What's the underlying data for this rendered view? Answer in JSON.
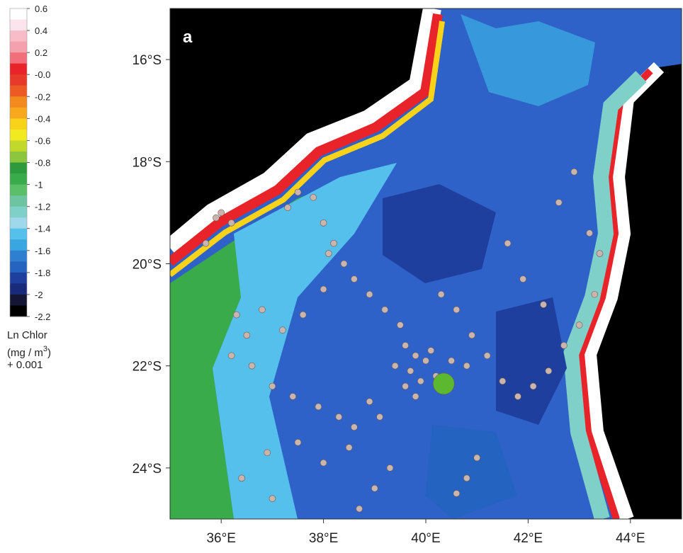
{
  "chart_data": {
    "type": "scatter",
    "panel_label": "a",
    "xlim": [
      35,
      45
    ],
    "ylim": [
      -25,
      -15
    ],
    "xticks": [
      {
        "value": 36,
        "label": "36°E"
      },
      {
        "value": 38,
        "label": "38°E"
      },
      {
        "value": 40,
        "label": "40°E"
      },
      {
        "value": 42,
        "label": "42°E"
      },
      {
        "value": 44,
        "label": "44°E"
      }
    ],
    "yticks": [
      {
        "value": -16,
        "label": "16°S"
      },
      {
        "value": -18,
        "label": "18°S"
      },
      {
        "value": -20,
        "label": "20°S"
      },
      {
        "value": -22,
        "label": "22°S"
      },
      {
        "value": -24,
        "label": "24°S"
      }
    ],
    "series": [
      {
        "color": "#c9b5ad",
        "size": 4.5,
        "x": [
          35.9,
          36.0,
          36.2,
          35.7,
          37.3,
          37.5,
          37.8,
          38.0,
          38.2,
          38.4,
          38.1,
          38.6,
          38.9,
          39.2,
          39.5,
          39.6,
          39.8,
          40.0,
          39.7,
          39.9,
          40.1,
          39.4,
          39.6,
          39.8,
          40.2,
          40.5,
          40.8,
          38.0,
          37.6,
          37.2,
          36.8,
          36.5,
          36.3,
          36.2,
          36.6,
          37.0,
          37.4,
          37.9,
          38.3,
          38.6,
          38.9,
          39.1,
          38.5,
          38.0,
          37.5,
          36.9,
          36.4,
          40.3,
          40.6,
          40.9,
          41.2,
          41.5,
          41.8,
          42.1,
          42.4,
          42.7,
          43.0,
          43.3,
          43.4,
          43.2,
          42.6,
          42.9,
          41.6,
          41.9,
          42.3,
          41.0,
          40.8,
          40.6,
          39.3,
          39.0,
          38.7,
          37.0
        ],
        "values": [
          -19.1,
          -19.0,
          -19.2,
          -19.6,
          -18.9,
          -18.6,
          -18.7,
          -19.2,
          -19.6,
          -20.0,
          -19.8,
          -20.3,
          -20.6,
          -20.9,
          -21.2,
          -21.6,
          -21.8,
          -21.9,
          -22.1,
          -22.3,
          -21.7,
          -22.0,
          -22.4,
          -22.6,
          -22.2,
          -21.9,
          -22.0,
          -20.5,
          -21.0,
          -21.3,
          -20.9,
          -21.4,
          -21.0,
          -21.8,
          -22.0,
          -22.4,
          -22.6,
          -22.8,
          -23.0,
          -23.2,
          -22.7,
          -23.0,
          -23.6,
          -23.9,
          -23.5,
          -23.7,
          -24.2,
          -20.6,
          -20.9,
          -21.4,
          -21.8,
          -22.3,
          -22.6,
          -22.4,
          -22.1,
          -21.6,
          -21.2,
          -20.6,
          -19.8,
          -19.4,
          -18.8,
          -18.2,
          -19.6,
          -20.3,
          -20.8,
          -23.8,
          -24.2,
          -24.5,
          -24.0,
          -24.4,
          -24.8,
          -24.6
        ]
      },
      {
        "color": "#5cb82e",
        "size": 15,
        "x": [
          40.35
        ],
        "values": [
          -22.35
        ]
      }
    ],
    "colorbar": {
      "lim": [
        -2.2,
        0.6
      ],
      "ticks": [
        0.6,
        0.4,
        0.2,
        {
          "value": 0,
          "label": "-0.0"
        },
        -0.2,
        -0.4,
        -0.6,
        -0.8,
        -1.0,
        -1.2,
        -1.4,
        -1.6,
        -1.8,
        -2.0,
        -2.2
      ],
      "colors": [
        "#ffffff",
        "#fce4ec",
        "#f8bcc8",
        "#f4a0ad",
        "#f06f7a",
        "#e8242a",
        "#e83a2a",
        "#ee5a24",
        "#f28a1e",
        "#f7a81c",
        "#f9d21a",
        "#f2ea20",
        "#c2d82a",
        "#8cc63f",
        "#2e9a3e",
        "#3aab4a",
        "#5bbf6a",
        "#6cc4a0",
        "#7fd0c8",
        "#9ed8ea",
        "#56c0ec",
        "#3aa6e0",
        "#2f7fd0",
        "#2563c0",
        "#1f3f9f",
        "#1a2a7a",
        "#151535",
        "#000000"
      ],
      "label": [
        "Ln Chlor",
        "(mg / m",
        "3",
        ")",
        "+ 0.001"
      ]
    }
  }
}
